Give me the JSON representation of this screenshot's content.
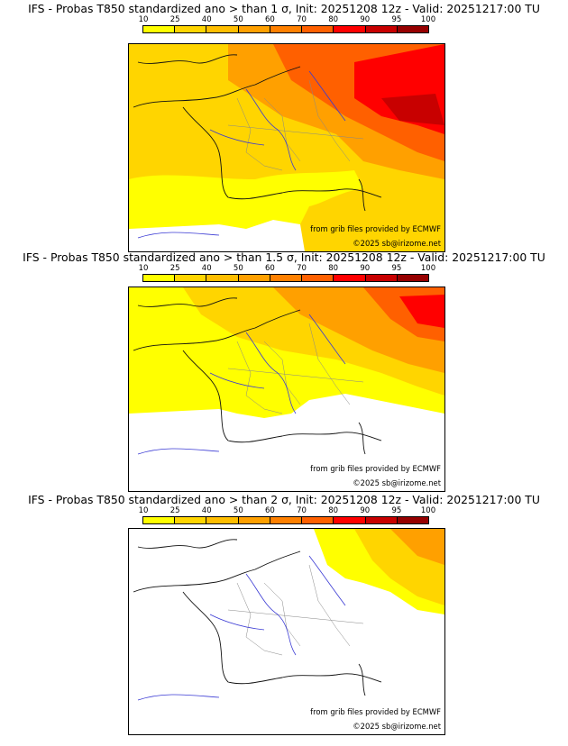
{
  "colorbar": {
    "ticks": [
      "10",
      "25",
      "40",
      "50",
      "60",
      "70",
      "80",
      "90",
      "95",
      "100"
    ],
    "colors": [
      "#ffff00",
      "#ffd500",
      "#ffbe00",
      "#ffa000",
      "#ff8000",
      "#ff6000",
      "#ff0000",
      "#c80000",
      "#960000",
      "#5a0000"
    ]
  },
  "credits": {
    "source": "from grib files provided by ECMWF",
    "copyright": "©2025 sb@irizome.net"
  },
  "panels": [
    {
      "title": "IFS - Probas T850  standardized ano > than 1 σ, Init: 20251208 12z - Valid: 20251217:00 TU",
      "threshold": "1 σ"
    },
    {
      "title": "IFS - Probas T850  standardized ano > than 1.5 σ, Init: 20251208 12z - Valid: 20251217:00 TU",
      "threshold": "1.5 σ"
    },
    {
      "title": "IFS - Probas T850  standardized ano > than 2 σ, Init: 20251208 12z - Valid: 20251217:00 TU",
      "threshold": "2 σ"
    }
  ]
}
